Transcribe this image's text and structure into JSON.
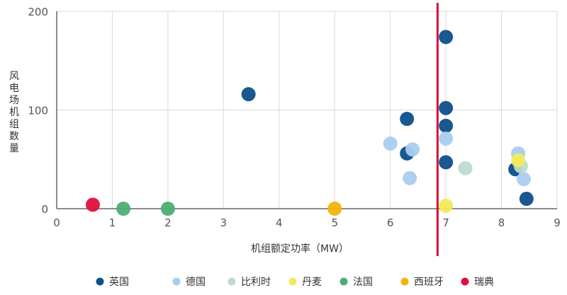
{
  "chart_data": {
    "type": "scatter",
    "title": "",
    "xlabel": "机组额定功率（MW）",
    "ylabel": "风电场机组数量",
    "xlim": [
      0,
      9
    ],
    "ylim": [
      0,
      200
    ],
    "x_ticks": [
      "0",
      "1",
      "2",
      "3",
      "4",
      "5",
      "6",
      "7",
      "8",
      "9"
    ],
    "y_ticks": [
      "0",
      "100",
      "200"
    ],
    "grid": "vertical",
    "legend_position": "bottom",
    "reference_line": {
      "x": 6.85,
      "color": "#d0103a"
    },
    "series": [
      {
        "name": "英国",
        "color": "#0d4f8b",
        "points": [
          [
            3.45,
            116
          ],
          [
            6.3,
            91
          ],
          [
            6.3,
            56
          ],
          [
            7.0,
            174
          ],
          [
            7.0,
            102
          ],
          [
            7.0,
            84
          ],
          [
            7.0,
            47
          ],
          [
            8.25,
            40
          ],
          [
            8.45,
            10
          ]
        ]
      },
      {
        "name": "德国",
        "color": "#a9cdee",
        "points": [
          [
            6.0,
            66
          ],
          [
            6.4,
            60
          ],
          [
            6.35,
            31
          ],
          [
            7.0,
            71
          ],
          [
            8.3,
            56
          ],
          [
            8.4,
            30
          ]
        ]
      },
      {
        "name": "比利时",
        "color": "#bcdccc",
        "points": [
          [
            7.35,
            41
          ],
          [
            8.35,
            43
          ]
        ]
      },
      {
        "name": "丹麦",
        "color": "#f2ea5a",
        "points": [
          [
            7.0,
            3
          ],
          [
            8.3,
            49
          ]
        ]
      },
      {
        "name": "法国",
        "color": "#4caf72",
        "points": [
          [
            1.2,
            0
          ],
          [
            2.0,
            0
          ]
        ]
      },
      {
        "name": "西班牙",
        "color": "#f2b40c",
        "points": [
          [
            5.0,
            0
          ]
        ]
      },
      {
        "name": "瑞典",
        "color": "#e0103f",
        "points": [
          [
            0.65,
            4
          ]
        ]
      }
    ]
  }
}
